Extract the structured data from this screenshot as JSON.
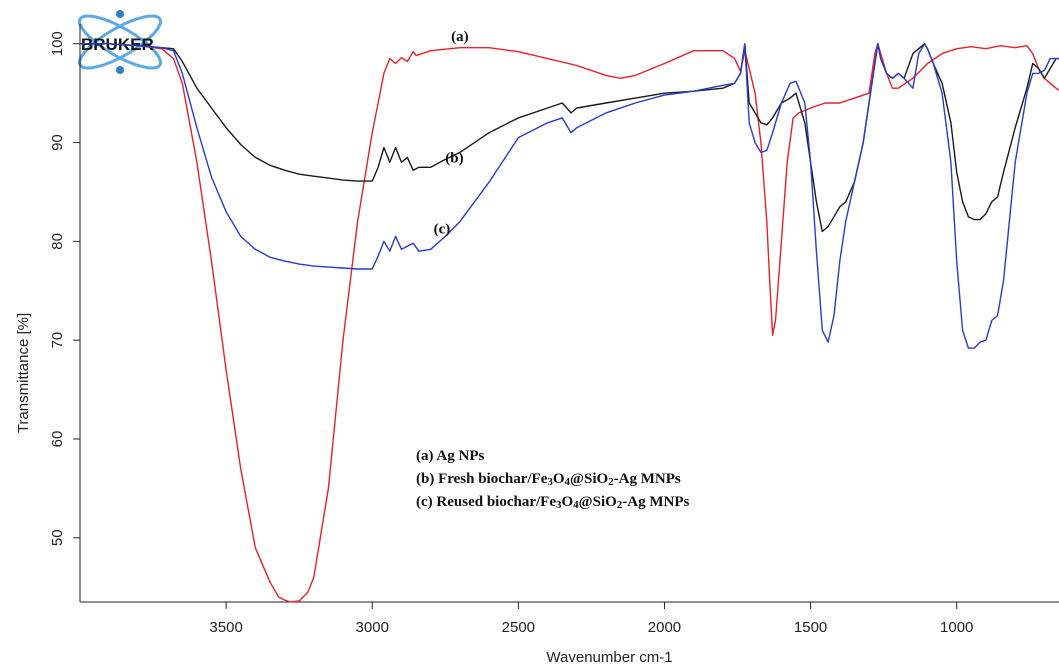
{
  "logo": {
    "text": "BRUKER"
  },
  "chart_data": {
    "type": "line",
    "xlabel": "Wavenumber cm-1",
    "ylabel": "Transmittance [%]",
    "xlim": [
      4000,
      650
    ],
    "ylim": [
      43.5,
      102
    ],
    "xticks": [
      3500,
      3000,
      2500,
      2000,
      1500,
      1000
    ],
    "yticks": [
      50,
      60,
      70,
      80,
      90,
      100
    ],
    "grid": false,
    "legend": {
      "position": "center",
      "entries": [
        "(a) Ag NPs",
        "(b) Fresh biochar/Fe3O4@SiO2-Ag MNPs",
        "(c) Reused biochar/Fe3O4@SiO2-Ag MNPs"
      ]
    },
    "series": [
      {
        "name": "(a)",
        "color": "#e8202a",
        "label_at": [
          2730,
          100.3
        ],
        "x": [
          4000,
          3900,
          3800,
          3720,
          3680,
          3650,
          3600,
          3550,
          3500,
          3450,
          3400,
          3350,
          3320,
          3300,
          3280,
          3250,
          3220,
          3200,
          3150,
          3100,
          3050,
          3000,
          2980,
          2960,
          2940,
          2920,
          2900,
          2880,
          2860,
          2850,
          2800,
          2700,
          2600,
          2500,
          2400,
          2300,
          2200,
          2150,
          2100,
          2000,
          1900,
          1800,
          1760,
          1740,
          1725,
          1710,
          1690,
          1670,
          1650,
          1640,
          1630,
          1620,
          1600,
          1580,
          1560,
          1540,
          1500,
          1450,
          1400,
          1350,
          1300,
          1280,
          1270,
          1260,
          1240,
          1220,
          1200,
          1150,
          1100,
          1050,
          1000,
          950,
          900,
          850,
          800,
          760,
          740,
          720,
          700,
          680,
          660,
          650
        ],
        "y": [
          100,
          100,
          99.8,
          99.5,
          98.5,
          96,
          88,
          78,
          67,
          57,
          49,
          45.5,
          44,
          43.7,
          43.5,
          43.6,
          44.5,
          46,
          55,
          70,
          82,
          91,
          94,
          97,
          98.5,
          98,
          98.6,
          98.2,
          99.2,
          98.8,
          99.3,
          99.6,
          99.6,
          99.2,
          98.5,
          97.8,
          96.8,
          96.5,
          96.8,
          98,
          99.3,
          99.3,
          98.5,
          97.2,
          99.3,
          97.5,
          95,
          90,
          82,
          76,
          70.5,
          72,
          80,
          88,
          92.5,
          93,
          93.5,
          94,
          94,
          94.5,
          95,
          99,
          100,
          99,
          97,
          95.5,
          95.5,
          96.5,
          98,
          99,
          99.5,
          99.7,
          99.5,
          99.8,
          99.6,
          99.8,
          99,
          97.5,
          96.5,
          96,
          95.5,
          95.3
        ]
      },
      {
        "name": "(b)",
        "color": "#1a1a1a",
        "label_at": [
          2750,
          88
        ],
        "x": [
          4000,
          3900,
          3800,
          3720,
          3680,
          3650,
          3600,
          3550,
          3500,
          3450,
          3400,
          3350,
          3300,
          3250,
          3200,
          3150,
          3100,
          3050,
          3000,
          2980,
          2960,
          2940,
          2920,
          2900,
          2880,
          2860,
          2840,
          2800,
          2750,
          2700,
          2600,
          2500,
          2400,
          2350,
          2320,
          2300,
          2200,
          2100,
          2000,
          1900,
          1800,
          1760,
          1740,
          1725,
          1710,
          1690,
          1670,
          1650,
          1630,
          1600,
          1570,
          1550,
          1520,
          1500,
          1480,
          1460,
          1440,
          1420,
          1400,
          1380,
          1350,
          1320,
          1300,
          1280,
          1270,
          1260,
          1240,
          1220,
          1200,
          1180,
          1150,
          1130,
          1110,
          1100,
          1080,
          1050,
          1020,
          1000,
          980,
          960,
          940,
          920,
          900,
          880,
          860,
          840,
          800,
          760,
          740,
          720,
          700,
          680,
          660,
          650
        ],
        "y": [
          100,
          100,
          99.8,
          99.6,
          99.5,
          98.2,
          95.5,
          93.5,
          91.5,
          89.8,
          88.5,
          87.7,
          87.2,
          86.8,
          86.6,
          86.4,
          86.2,
          86.1,
          86.1,
          87.5,
          89.5,
          88,
          89.5,
          88,
          88.5,
          87.2,
          87.5,
          87.5,
          88.3,
          89,
          91,
          92.5,
          93.5,
          94,
          93,
          93.5,
          94,
          94.5,
          95,
          95.2,
          95.5,
          96,
          97,
          100,
          94,
          93,
          92,
          91.8,
          92.5,
          94,
          94.5,
          95,
          92,
          88,
          84,
          81,
          81.5,
          82.5,
          83.5,
          84,
          86,
          90,
          94,
          98,
          100,
          98.5,
          97,
          96.5,
          97,
          96.5,
          99,
          99.5,
          100,
          99.5,
          98,
          96,
          92,
          87,
          84,
          82.5,
          82.2,
          82.2,
          82.8,
          84,
          84.5,
          87,
          91.5,
          95.5,
          98,
          97.5,
          96.5,
          97.5,
          98.5,
          98.5
        ]
      },
      {
        "name": "(c)",
        "color": "#2a3ad0",
        "label_at": [
          2790,
          80.8
        ],
        "x": [
          4000,
          3900,
          3800,
          3720,
          3680,
          3650,
          3600,
          3550,
          3500,
          3450,
          3400,
          3350,
          3300,
          3250,
          3200,
          3150,
          3100,
          3050,
          3000,
          2980,
          2960,
          2940,
          2920,
          2900,
          2880,
          2860,
          2840,
          2800,
          2750,
          2700,
          2600,
          2500,
          2400,
          2350,
          2320,
          2300,
          2200,
          2100,
          2000,
          1900,
          1800,
          1760,
          1740,
          1725,
          1710,
          1690,
          1670,
          1650,
          1630,
          1600,
          1570,
          1550,
          1520,
          1500,
          1480,
          1460,
          1440,
          1420,
          1400,
          1380,
          1350,
          1320,
          1300,
          1280,
          1270,
          1260,
          1240,
          1220,
          1200,
          1180,
          1150,
          1130,
          1110,
          1100,
          1080,
          1050,
          1020,
          1000,
          980,
          960,
          940,
          920,
          900,
          880,
          860,
          840,
          800,
          760,
          740,
          720,
          700,
          680,
          660,
          650
        ],
        "y": [
          100,
          100,
          99.8,
          99.6,
          99.3,
          97,
          91.5,
          86.5,
          83,
          80.5,
          79.2,
          78.4,
          78,
          77.7,
          77.5,
          77.4,
          77.3,
          77.2,
          77.2,
          78.5,
          80,
          79,
          80.5,
          79.2,
          79.5,
          79.8,
          79,
          79.2,
          80.5,
          82,
          86,
          90.5,
          92,
          92.5,
          91,
          91.5,
          93,
          94,
          94.8,
          95.2,
          95.8,
          96,
          97,
          100,
          92,
          90,
          89,
          89.2,
          91,
          94,
          96,
          96.2,
          94,
          88,
          79,
          71,
          69.8,
          72.5,
          78,
          82,
          86,
          90,
          94,
          98,
          100,
          98.5,
          97,
          96.5,
          97,
          96.5,
          95.5,
          99,
          100,
          99.5,
          98,
          95,
          88,
          78,
          71,
          69.2,
          69.2,
          69.8,
          70,
          72,
          72.5,
          76,
          88,
          95,
          97,
          97,
          97.3,
          98.5,
          98.5,
          98.5
        ]
      }
    ]
  }
}
